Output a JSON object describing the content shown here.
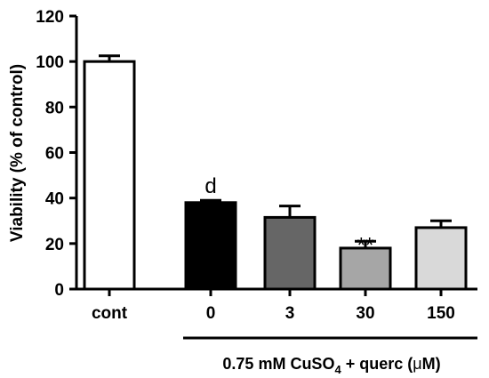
{
  "chart_data": {
    "type": "bar",
    "title": "",
    "ylabel": "Viability (% of control)",
    "xlabel": "",
    "ylim": [
      0,
      120
    ],
    "yticks": [
      "0",
      "20",
      "40",
      "60",
      "80",
      "100",
      "120"
    ],
    "categories": [
      "cont",
      "0",
      "3",
      "30",
      "150"
    ],
    "values": [
      100,
      38,
      31.5,
      18,
      27
    ],
    "errors": [
      2.5,
      1,
      5,
      3,
      3
    ],
    "bar_colors": [
      "#ffffff",
      "#000000",
      "#666666",
      "#a6a6a6",
      "#d9d9d9"
    ],
    "annotations": [
      "",
      "d",
      "",
      "**",
      ""
    ],
    "group_label": {
      "prefix": "0.75 mM CuSO",
      "subscript": "4",
      "middle": " + querc (",
      "mu": "μ",
      "suffix": "M)"
    },
    "grid": false,
    "legend": "none"
  }
}
